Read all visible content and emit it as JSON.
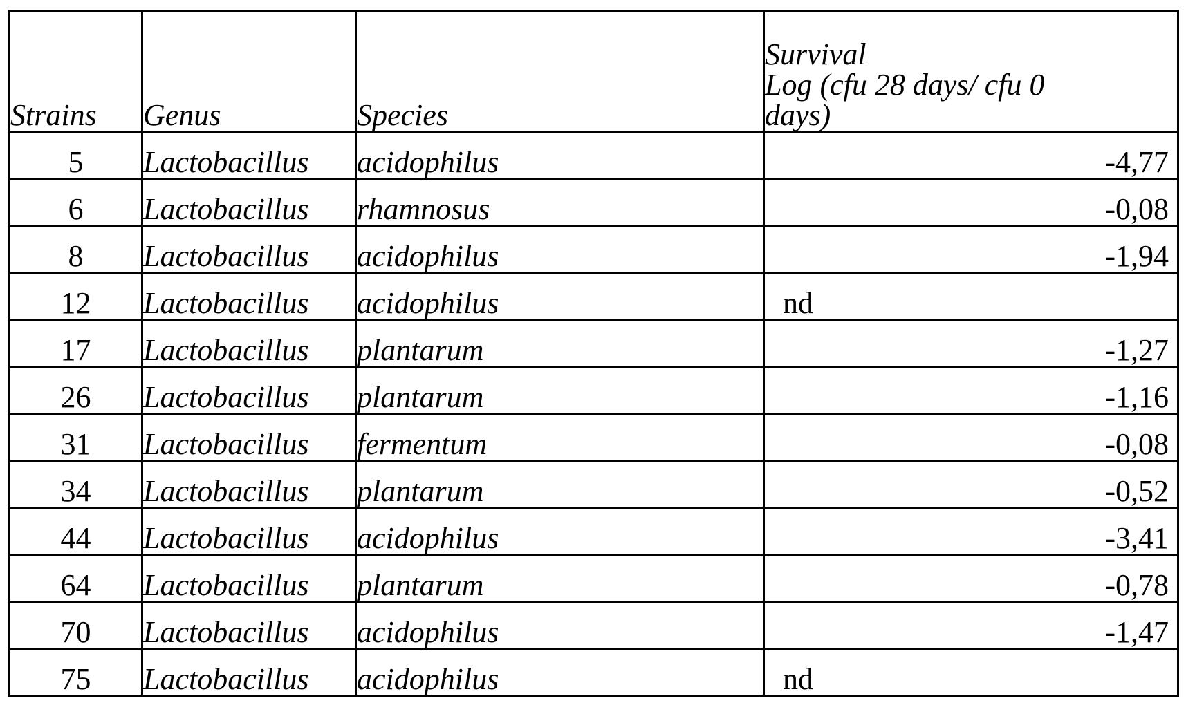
{
  "table": {
    "headers": {
      "strains": "Strains",
      "genus": "Genus",
      "species": "Species",
      "survival_line1": "Survival",
      "survival_line2": "Log (cfu 28 days/ cfu 0",
      "survival_line3": "days)"
    },
    "rows": [
      {
        "strain": "5",
        "genus": "Lactobacillus",
        "species": "acidophilus",
        "survival": "-4,77"
      },
      {
        "strain": "6",
        "genus": "Lactobacillus",
        "species": "rhamnosus",
        "survival": "-0,08"
      },
      {
        "strain": "8",
        "genus": "Lactobacillus",
        "species": "acidophilus",
        "survival": "-1,94"
      },
      {
        "strain": "12",
        "genus": "Lactobacillus",
        "species": "acidophilus",
        "survival": "nd"
      },
      {
        "strain": "17",
        "genus": "Lactobacillus",
        "species": "plantarum",
        "survival": "-1,27"
      },
      {
        "strain": "26",
        "genus": "Lactobacillus",
        "species": "plantarum",
        "survival": "-1,16"
      },
      {
        "strain": "31",
        "genus": "Lactobacillus",
        "species": "fermentum",
        "survival": "-0,08"
      },
      {
        "strain": "34",
        "genus": "Lactobacillus",
        "species": "plantarum",
        "survival": "-0,52"
      },
      {
        "strain": "44",
        "genus": "Lactobacillus",
        "species": "acidophilus",
        "survival": "-3,41"
      },
      {
        "strain": "64",
        "genus": "Lactobacillus",
        "species": "plantarum",
        "survival": "-0,78"
      },
      {
        "strain": "70",
        "genus": "Lactobacillus",
        "species": "acidophilus",
        "survival": "-1,47"
      },
      {
        "strain": "75",
        "genus": "Lactobacillus",
        "species": "acidophilus",
        "survival": "nd"
      }
    ]
  }
}
